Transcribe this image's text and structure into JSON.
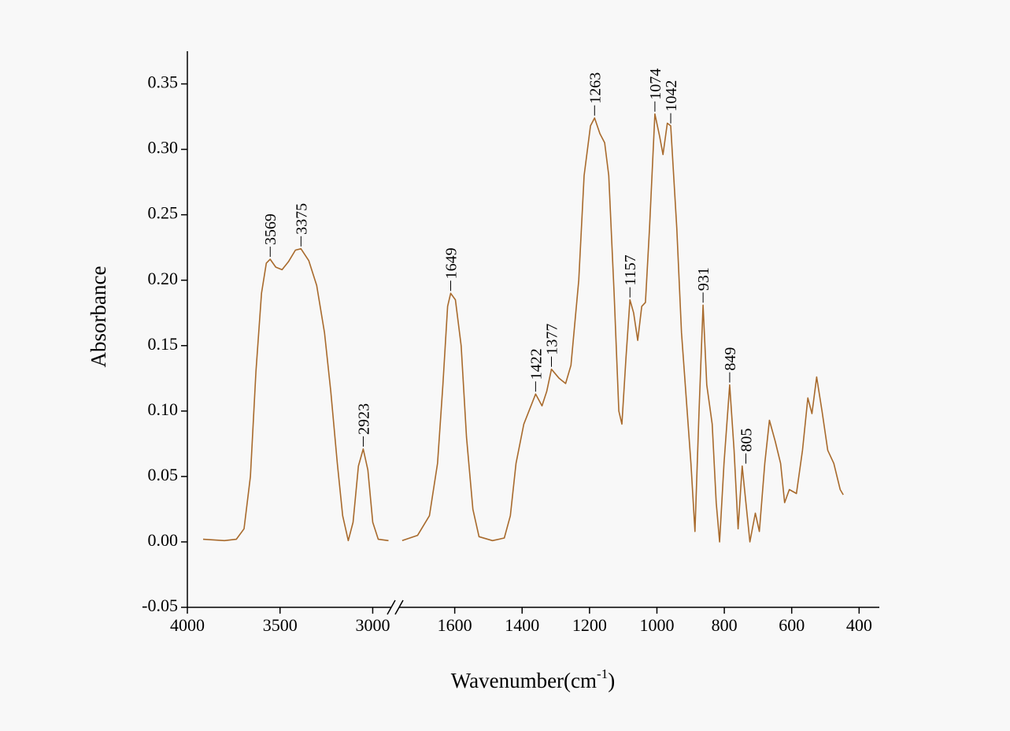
{
  "chart_data": {
    "type": "line",
    "ylabel": "Absorbance",
    "xlabel": [
      "Wavenumber(cm",
      "-1",
      ")"
    ],
    "ylim": [
      -0.05,
      0.375
    ],
    "yticks": [
      -0.05,
      {
        "value": 0,
        "label": "0.00"
      },
      0.05,
      {
        "value": 0.1,
        "label": "0.10"
      },
      0.15,
      {
        "value": 0.2,
        "label": "0.20"
      },
      0.25,
      {
        "value": 0.3,
        "label": "0.30"
      },
      0.35
    ],
    "x_segments": [
      {
        "xlim": [
          4000,
          2900
        ],
        "xticks": [
          4000,
          3500,
          3000
        ]
      },
      {
        "xlim": [
          1765,
          340
        ],
        "xticks": [
          1600,
          1400,
          1200,
          1000,
          800,
          600,
          400
        ]
      }
    ],
    "axis_break": true,
    "series": [
      {
        "color": "#a86a2c",
        "x": [
          3915,
          3800,
          3736,
          3694,
          3660,
          3630,
          3600,
          3574,
          3553,
          3523,
          3489,
          3455,
          3417,
          3387,
          3345,
          3302,
          3260,
          3226,
          3191,
          3162,
          3132,
          3106,
          3077,
          3051,
          3026,
          3000,
          2970,
          2915,
          null,
          1756,
          1710,
          1675,
          1651,
          1635,
          1621,
          1612,
          1598,
          1581,
          1565,
          1546,
          1528,
          1488,
          1453,
          1435,
          1418,
          1395,
          1360,
          1341,
          1327,
          1313,
          1290,
          1271,
          1255,
          1232,
          1216,
          1197,
          1185,
          1169,
          1155,
          1143,
          1127,
          1113,
          1104,
          1092,
          1080,
          1069,
          1057,
          1045,
          1034,
          1022,
          1006,
          992,
          982,
          969,
          959,
          941,
          927,
          913,
          899,
          887,
          875,
          863,
          852,
          836,
          824,
          814,
          801,
          784,
          771,
          759,
          747,
          736,
          724,
          708,
          696,
          680,
          666,
          649,
          633,
          621,
          607,
          586,
          568,
          552,
          540,
          526,
          510,
          493,
          475,
          456,
          447
        ],
        "values": [
          0.002,
          0.001,
          0.002,
          0.01,
          0.05,
          0.13,
          0.19,
          0.213,
          0.216,
          0.21,
          0.208,
          0.214,
          0.223,
          0.224,
          0.215,
          0.196,
          0.16,
          0.115,
          0.06,
          0.02,
          0.001,
          0.015,
          0.058,
          0.071,
          0.055,
          0.015,
          0.002,
          0.001,
          null,
          0.001,
          0.005,
          0.02,
          0.06,
          0.12,
          0.18,
          0.19,
          0.185,
          0.15,
          0.08,
          0.025,
          0.004,
          0.001,
          0.003,
          0.02,
          0.06,
          0.09,
          0.113,
          0.104,
          0.115,
          0.132,
          0.125,
          0.121,
          0.135,
          0.2,
          0.28,
          0.318,
          0.324,
          0.312,
          0.305,
          0.28,
          0.19,
          0.1,
          0.09,
          0.14,
          0.185,
          0.175,
          0.154,
          0.18,
          0.183,
          0.24,
          0.327,
          0.31,
          0.296,
          0.32,
          0.318,
          0.24,
          0.16,
          0.11,
          0.06,
          0.008,
          0.1,
          0.181,
          0.12,
          0.09,
          0.03,
          0.0,
          0.06,
          0.12,
          0.07,
          0.01,
          0.058,
          0.03,
          0.0,
          0.022,
          0.008,
          0.06,
          0.093,
          0.077,
          0.06,
          0.03,
          0.04,
          0.037,
          0.07,
          0.11,
          0.098,
          0.126,
          0.1,
          0.07,
          0.06,
          0.04,
          0.036
        ]
      }
    ],
    "annotations": [
      {
        "text": "3569",
        "x": 3553,
        "y": 0.216
      },
      {
        "text": "3375",
        "x": 3387,
        "y": 0.224
      },
      {
        "text": "2923",
        "x": 3051,
        "y": 0.071
      },
      {
        "text": "1649",
        "x": 1612,
        "y": 0.19
      },
      {
        "text": "1422",
        "x": 1360,
        "y": 0.113
      },
      {
        "text": "1377",
        "x": 1313,
        "y": 0.132
      },
      {
        "text": "1263",
        "x": 1185,
        "y": 0.324
      },
      {
        "text": "1157",
        "x": 1080,
        "y": 0.185
      },
      {
        "text": "1074",
        "x": 1006,
        "y": 0.327
      },
      {
        "text": "1042",
        "x": 959,
        "y": 0.318
      },
      {
        "text": "931",
        "x": 863,
        "y": 0.181
      },
      {
        "text": "849",
        "x": 784,
        "y": 0.12
      },
      {
        "text": "805",
        "x": 736,
        "y": 0.058
      }
    ]
  }
}
